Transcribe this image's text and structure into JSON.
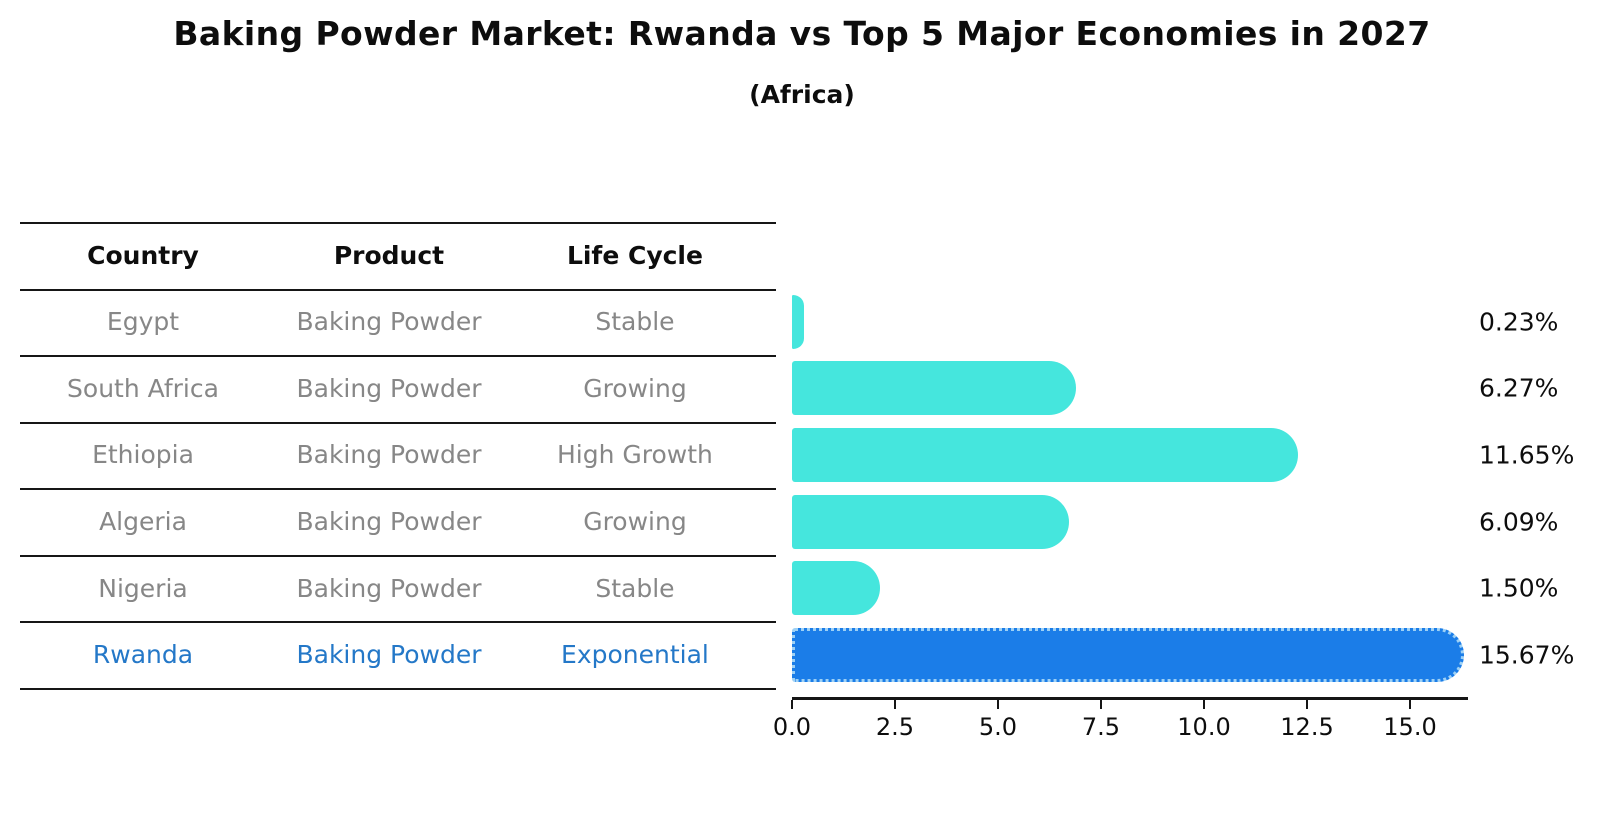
{
  "header": {
    "title": "Baking Powder Market: Rwanda vs Top 5 Major Economies in 2027",
    "subtitle": "(Africa)"
  },
  "table": {
    "columns": [
      "Country",
      "Product",
      "Life Cycle"
    ],
    "rows": [
      {
        "country": "Egypt",
        "product": "Baking Powder",
        "life_cycle": "Stable",
        "highlight": false
      },
      {
        "country": "South Africa",
        "product": "Baking Powder",
        "life_cycle": "Growing",
        "highlight": false
      },
      {
        "country": "Ethiopia",
        "product": "Baking Powder",
        "life_cycle": "High Growth",
        "highlight": false
      },
      {
        "country": "Algeria",
        "product": "Baking Powder",
        "life_cycle": "Growing",
        "highlight": false
      },
      {
        "country": "Nigeria",
        "product": "Baking Powder",
        "life_cycle": "Stable",
        "highlight": false
      },
      {
        "country": "Rwanda",
        "product": "Baking Powder",
        "life_cycle": "Exponential",
        "highlight": true
      }
    ]
  },
  "chart_data": {
    "type": "bar",
    "orientation": "horizontal",
    "title": "Baking Powder Market: Rwanda vs Top 5 Major Economies in 2027",
    "subtitle": "(Africa)",
    "categories": [
      "Egypt",
      "South Africa",
      "Ethiopia",
      "Algeria",
      "Nigeria",
      "Rwanda"
    ],
    "values": [
      0.23,
      6.27,
      11.65,
      6.09,
      1.5,
      15.67
    ],
    "value_labels": [
      "0.23%",
      "6.27%",
      "11.65%",
      "6.09%",
      "1.50%",
      "15.67%"
    ],
    "highlight_index": 5,
    "x_ticks": [
      0.0,
      2.5,
      5.0,
      7.5,
      10.0,
      12.5,
      15.0
    ],
    "x_tick_labels": [
      "0.0",
      "2.5",
      "5.0",
      "7.5",
      "10.0",
      "12.5",
      "15.0"
    ],
    "xlim": [
      0,
      16.4
    ],
    "grid": false,
    "legend": "none",
    "bar_color": "#45e6dd",
    "highlight_bar_color": "#1b7de8",
    "highlight_border_color": "#9ed1f5"
  },
  "colors": {
    "row_text_gray": "#878787",
    "highlight_text_blue": "#2478c8",
    "line_black": "#161616"
  }
}
